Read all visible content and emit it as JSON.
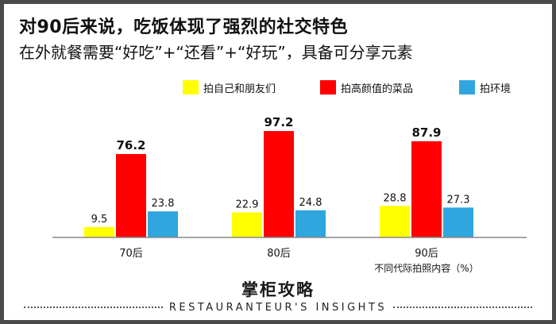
{
  "header": {
    "title": "对90后来说，吃饭体现了强烈的社交特色",
    "subtitle": "在外就餐需要“好吃”+“还看”+“好玩”，具备可分享元素"
  },
  "footer": {
    "brand": "掌柜攻略",
    "tagline": "RESTAURANTEUR'S INSIGHTS"
  },
  "chart_data": {
    "type": "bar",
    "categories": [
      "70后",
      "80后",
      "90后"
    ],
    "series": [
      {
        "name": "拍自己和朋友们",
        "color": "#ffff00",
        "values": [
          9.5,
          22.9,
          28.8
        ]
      },
      {
        "name": "拍高颜值的菜品",
        "color": "#ff0000",
        "values": [
          76.2,
          97.2,
          87.9
        ]
      },
      {
        "name": "拍环境",
        "color": "#2fa7de",
        "values": [
          23.8,
          24.8,
          27.3
        ]
      }
    ],
    "xlabel": "不同代际拍照内容（%）",
    "ylim": [
      0,
      100
    ],
    "grid": false,
    "legend": "top-right"
  }
}
